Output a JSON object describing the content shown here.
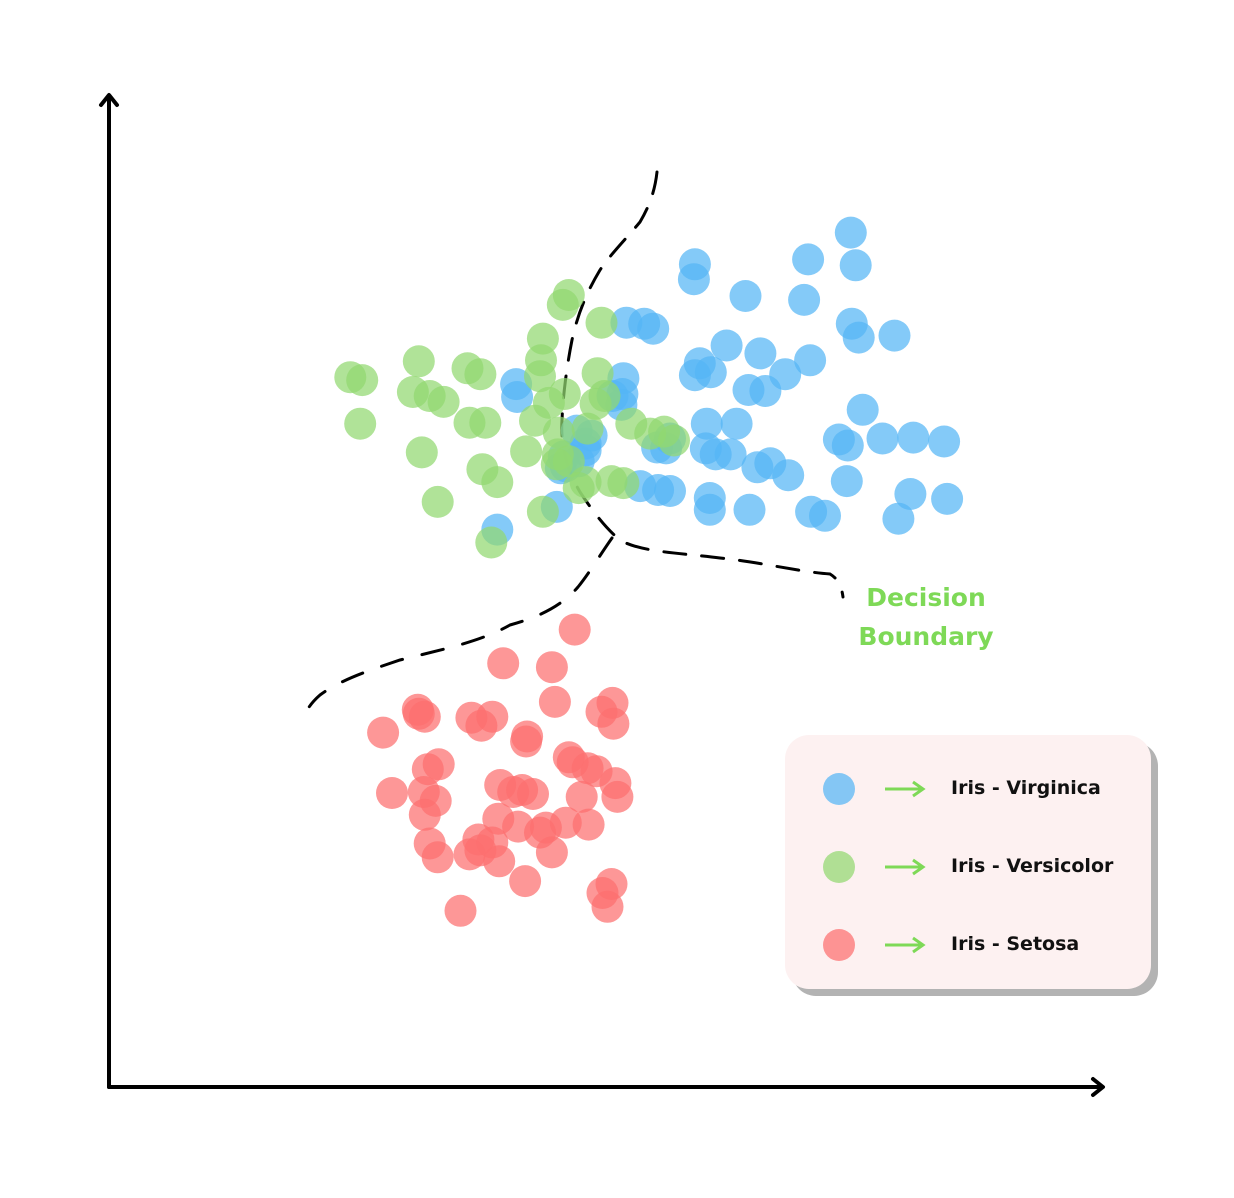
{
  "chart_data": {
    "type": "scatter",
    "title": "",
    "xlabel": "",
    "ylabel": "",
    "grid": false,
    "xlim": [
      0,
      100
    ],
    "ylim": [
      0,
      100
    ],
    "annotation": "Decision Boundary",
    "legend": {
      "placement": "bottom-right",
      "arrow_color": "#7ed957"
    },
    "series": [
      {
        "name": "Iris - Virginica",
        "color": "#55b5f5",
        "points": [
          [
            74.7,
            86.3
          ],
          [
            70.4,
            83.6
          ],
          [
            75.2,
            83.0
          ],
          [
            59.0,
            83.1
          ],
          [
            58.9,
            81.6
          ],
          [
            64.1,
            79.9
          ],
          [
            70.0,
            79.5
          ],
          [
            52.1,
            77.2
          ],
          [
            53.9,
            77.1
          ],
          [
            54.8,
            76.6
          ],
          [
            74.8,
            77.1
          ],
          [
            75.5,
            75.7
          ],
          [
            79.1,
            75.9
          ],
          [
            62.2,
            74.9
          ],
          [
            65.6,
            74.1
          ],
          [
            70.6,
            73.4
          ],
          [
            59.5,
            73.1
          ],
          [
            60.6,
            72.2
          ],
          [
            59.0,
            71.9
          ],
          [
            68.1,
            72.0
          ],
          [
            51.8,
            71.6
          ],
          [
            41.0,
            71.0
          ],
          [
            51.7,
            70.0
          ],
          [
            64.4,
            70.4
          ],
          [
            66.1,
            70.3
          ],
          [
            41.1,
            69.7
          ],
          [
            50.7,
            69.8
          ],
          [
            51.6,
            68.9
          ],
          [
            75.9,
            68.4
          ],
          [
            60.2,
            67.0
          ],
          [
            63.2,
            67.0
          ],
          [
            47.1,
            66.3
          ],
          [
            48.6,
            65.8
          ],
          [
            73.5,
            65.4
          ],
          [
            81.0,
            65.6
          ],
          [
            84.1,
            65.2
          ],
          [
            56.5,
            65.5
          ],
          [
            48.0,
            65.0
          ],
          [
            74.4,
            64.8
          ],
          [
            77.9,
            65.5
          ],
          [
            55.2,
            64.6
          ],
          [
            56.1,
            64.5
          ],
          [
            60.1,
            64.5
          ],
          [
            48.0,
            64.3
          ],
          [
            45.8,
            63.7
          ],
          [
            47.3,
            63.2
          ],
          [
            61.1,
            63.9
          ],
          [
            62.6,
            63.9
          ],
          [
            45.5,
            62.5
          ],
          [
            46.0,
            62.7
          ],
          [
            66.6,
            63.0
          ],
          [
            65.3,
            62.6
          ],
          [
            68.4,
            61.8
          ],
          [
            74.3,
            61.2
          ],
          [
            53.5,
            60.7
          ],
          [
            55.3,
            60.3
          ],
          [
            56.5,
            60.2
          ],
          [
            60.5,
            59.5
          ],
          [
            80.7,
            59.9
          ],
          [
            84.4,
            59.4
          ],
          [
            45.1,
            58.6
          ],
          [
            64.5,
            58.3
          ],
          [
            70.7,
            58.1
          ],
          [
            39.1,
            56.3
          ],
          [
            60.5,
            58.3
          ],
          [
            72.1,
            57.7
          ],
          [
            79.5,
            57.4
          ]
        ]
      },
      {
        "name": "Iris - Versicolor",
        "color": "#92d870",
        "points": [
          [
            46.3,
            80.0
          ],
          [
            45.7,
            79.0
          ],
          [
            49.6,
            77.2
          ],
          [
            43.7,
            75.6
          ],
          [
            43.5,
            73.4
          ],
          [
            31.2,
            73.3
          ],
          [
            24.3,
            71.7
          ],
          [
            36.1,
            72.6
          ],
          [
            25.5,
            71.4
          ],
          [
            37.4,
            72.0
          ],
          [
            49.2,
            72.1
          ],
          [
            43.4,
            71.8
          ],
          [
            30.6,
            70.2
          ],
          [
            32.3,
            69.8
          ],
          [
            49.9,
            69.8
          ],
          [
            45.9,
            70.0
          ],
          [
            33.7,
            69.2
          ],
          [
            44.3,
            69.1
          ],
          [
            49.0,
            69.0
          ],
          [
            25.3,
            67.0
          ],
          [
            36.3,
            67.1
          ],
          [
            37.9,
            67.1
          ],
          [
            42.9,
            67.3
          ],
          [
            52.6,
            67.0
          ],
          [
            48.2,
            66.5
          ],
          [
            45.3,
            66.1
          ],
          [
            54.5,
            66.0
          ],
          [
            55.9,
            66.2
          ],
          [
            56.9,
            65.3
          ],
          [
            31.5,
            64.1
          ],
          [
            42.0,
            64.2
          ],
          [
            45.2,
            63.9
          ],
          [
            46.3,
            63.2
          ],
          [
            45.1,
            62.9
          ],
          [
            37.6,
            62.4
          ],
          [
            39.1,
            61.1
          ],
          [
            48.0,
            61.1
          ],
          [
            50.6,
            61.2
          ],
          [
            51.8,
            61.0
          ],
          [
            47.3,
            60.5
          ],
          [
            33.1,
            59.1
          ],
          [
            43.7,
            58.1
          ],
          [
            38.5,
            55.0
          ]
        ]
      },
      {
        "name": "Iris - Setosa",
        "color": "#fc6f6f",
        "points": [
          [
            46.9,
            46.2
          ],
          [
            39.7,
            42.8
          ],
          [
            44.6,
            42.4
          ],
          [
            44.9,
            38.9
          ],
          [
            50.7,
            38.8
          ],
          [
            31.1,
            38.1
          ],
          [
            31.2,
            37.7
          ],
          [
            36.5,
            37.3
          ],
          [
            38.6,
            37.4
          ],
          [
            31.8,
            37.4
          ],
          [
            49.6,
            37.9
          ],
          [
            50.8,
            36.7
          ],
          [
            37.5,
            36.5
          ],
          [
            27.6,
            35.8
          ],
          [
            42.1,
            35.4
          ],
          [
            42.0,
            34.9
          ],
          [
            46.3,
            33.3
          ],
          [
            46.7,
            32.8
          ],
          [
            48.2,
            32.2
          ],
          [
            32.1,
            32.1
          ],
          [
            33.2,
            32.6
          ],
          [
            49.1,
            31.9
          ],
          [
            51.0,
            30.7
          ],
          [
            39.4,
            30.5
          ],
          [
            41.6,
            30.0
          ],
          [
            28.5,
            29.7
          ],
          [
            31.7,
            29.8
          ],
          [
            40.7,
            29.8
          ],
          [
            42.7,
            29.6
          ],
          [
            47.6,
            29.3
          ],
          [
            51.2,
            29.3
          ],
          [
            32.9,
            28.9
          ],
          [
            31.8,
            27.5
          ],
          [
            39.2,
            27.1
          ],
          [
            41.2,
            26.3
          ],
          [
            44.0,
            26.2
          ],
          [
            46.0,
            26.7
          ],
          [
            48.3,
            26.5
          ],
          [
            43.4,
            25.7
          ],
          [
            37.2,
            25.0
          ],
          [
            38.6,
            24.7
          ],
          [
            32.3,
            24.6
          ],
          [
            37.4,
            23.9
          ],
          [
            44.6,
            23.7
          ],
          [
            33.1,
            23.2
          ],
          [
            36.3,
            23.5
          ],
          [
            39.3,
            22.8
          ],
          [
            41.9,
            20.8
          ],
          [
            50.6,
            20.5
          ],
          [
            49.7,
            19.6
          ],
          [
            35.4,
            17.8
          ],
          [
            50.2,
            18.2
          ]
        ]
      }
    ]
  }
}
